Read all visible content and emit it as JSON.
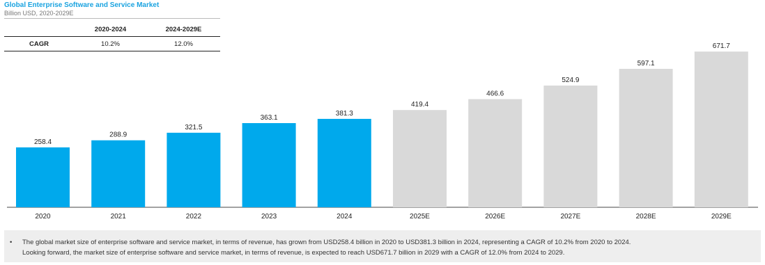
{
  "header": {
    "title": "Global Enterprise Software and Service Market",
    "subtitle": "Billion USD, 2020-2029E"
  },
  "cagr_table": {
    "headers": [
      "",
      "2020-2024",
      "2024-2029E"
    ],
    "row": {
      "label": "CAGR",
      "values": [
        "10.2%",
        "12.0%"
      ]
    }
  },
  "colors": {
    "actual": "#00a9ec",
    "forecast": "#d9d9d9",
    "title": "#1aa3e0"
  },
  "chart_data": {
    "type": "bar",
    "categories": [
      "2020",
      "2021",
      "2022",
      "2023",
      "2024",
      "2025E",
      "2026E",
      "2027E",
      "2028E",
      "2029E"
    ],
    "values": [
      258.4,
      288.9,
      321.5,
      363.1,
      381.3,
      419.4,
      466.6,
      524.9,
      597.1,
      671.7
    ],
    "labels": [
      "258.4",
      "288.9",
      "321.5",
      "363.1",
      "381.3",
      "419.4",
      "466.6",
      "524.9",
      "597.1",
      "671.7"
    ],
    "forecast_from_index": 5,
    "ylim": [
      0,
      700
    ],
    "grid": false,
    "legend": "none"
  },
  "note": {
    "bullet": "•",
    "lines": [
      "The global market size of enterprise software and service market, in terms of revenue, has grown from USD258.4 billion in 2020 to USD381.3 billion in 2024, representing a CAGR of 10.2% from 2020 to 2024.",
      "Looking forward, the market size of enterprise software and service market, in terms of revenue, is expected to reach USD671.7 billion in 2029 with a CAGR of 12.0% from 2024 to 2029."
    ]
  }
}
